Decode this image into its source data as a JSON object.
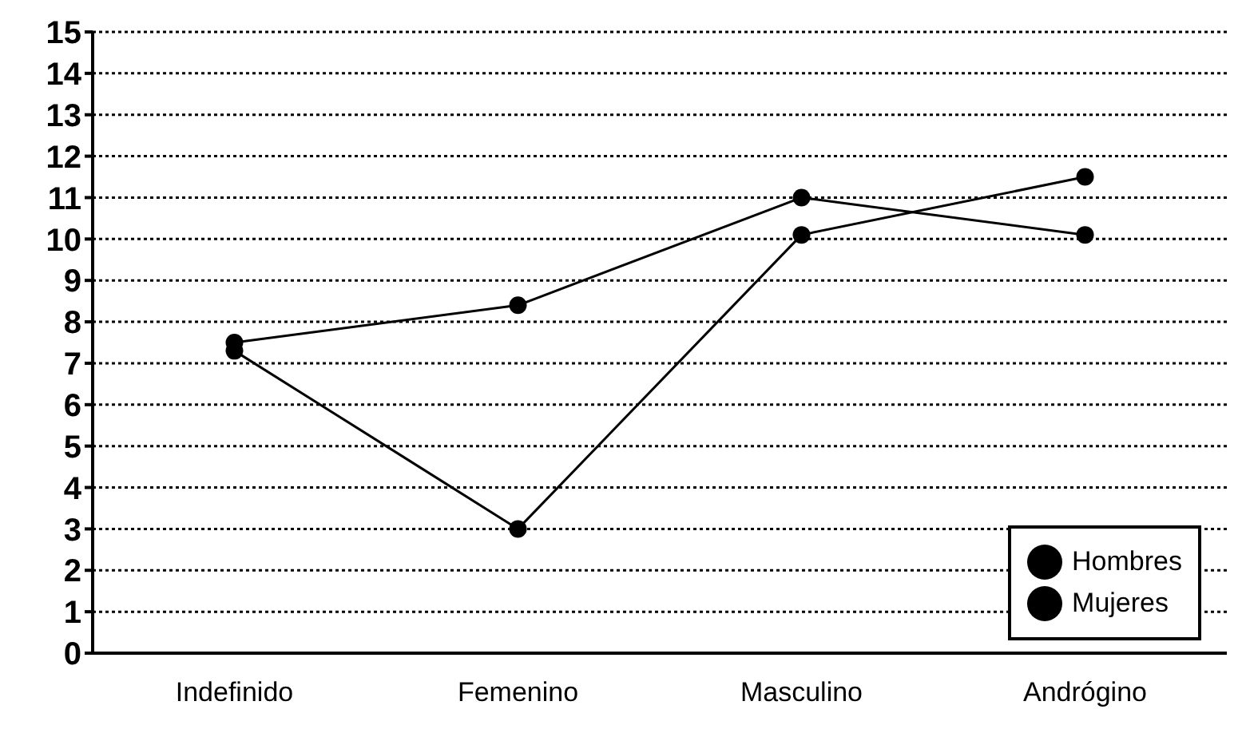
{
  "chart_data": {
    "type": "line",
    "categories": [
      "Indefinido",
      "Femenino",
      "Masculino",
      "Andrógino"
    ],
    "series": [
      {
        "name": "Hombres",
        "color": "#000000",
        "values": [
          7.5,
          8.4,
          11,
          10.1
        ]
      },
      {
        "name": "Mujeres",
        "color": "#000000",
        "values": [
          7.3,
          3,
          10.1,
          11.5
        ]
      }
    ],
    "ylim": [
      0,
      15
    ],
    "yticks": [
      0,
      1,
      2,
      3,
      4,
      5,
      6,
      7,
      8,
      9,
      10,
      11,
      12,
      13,
      14,
      15
    ],
    "grid": "y",
    "legend": "bottom right",
    "marker": "circle",
    "line_style": "solid"
  }
}
